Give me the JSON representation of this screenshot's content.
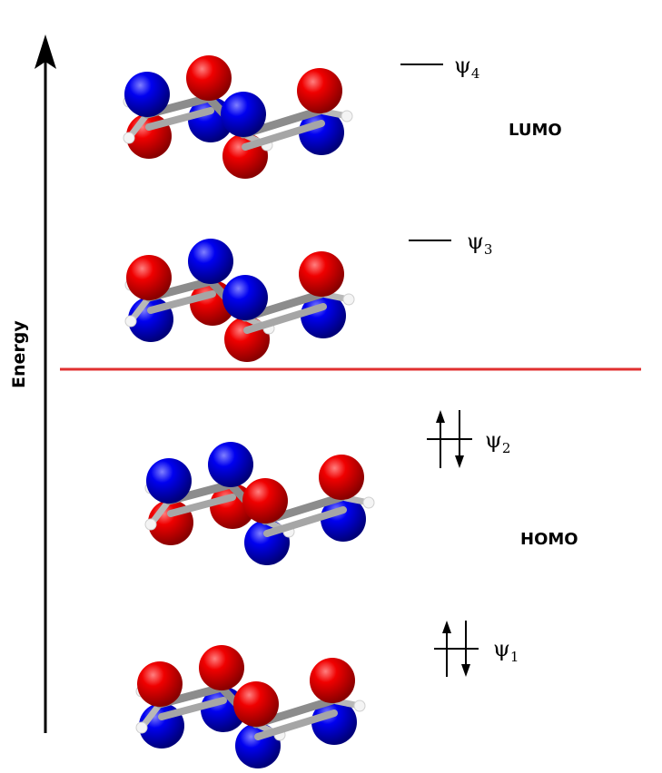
{
  "axis": {
    "label": "Energy"
  },
  "region_labels": {
    "lumo": "LUMO",
    "homo": "HOMO"
  },
  "colors": {
    "lobe_positive": "#e00000",
    "lobe_negative": "#0000e0",
    "bond": "#9a9a9a",
    "hydrogen": "#f4f4f4",
    "divider": "#e03030",
    "axis": "#000000"
  },
  "orbitals": [
    {
      "id": "psi4",
      "symbol": "ψ",
      "subscript": "4",
      "electrons": 0,
      "phases": [
        "-",
        "+",
        "-",
        "+"
      ]
    },
    {
      "id": "psi3",
      "symbol": "ψ",
      "subscript": "3",
      "electrons": 0,
      "phases": [
        "+",
        "-",
        "-",
        "+"
      ]
    },
    {
      "id": "psi2",
      "symbol": "ψ",
      "subscript": "2",
      "electrons": 2,
      "phases": [
        "-",
        "-",
        "+",
        "+"
      ]
    },
    {
      "id": "psi1",
      "symbol": "ψ",
      "subscript": "1",
      "electrons": 2,
      "phases": [
        "+",
        "+",
        "+",
        "+"
      ]
    }
  ]
}
